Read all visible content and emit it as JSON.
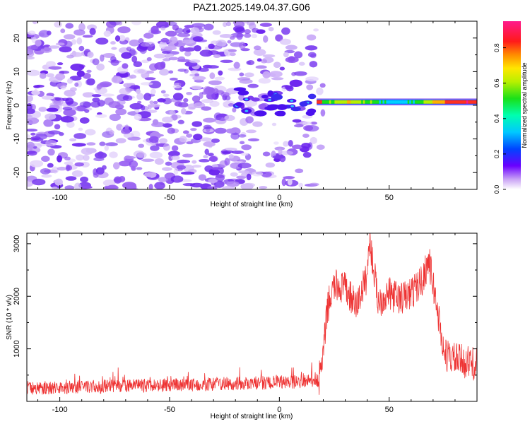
{
  "title": "PAZ1.2025.149.04.37.G06",
  "colors": {
    "snr_line": "#ee3333",
    "noise": "#7a3cf0",
    "noise_light": "#c9a9f7"
  },
  "chart_data": [
    {
      "type": "heatmap",
      "xlabel": "Height of straight line (km)",
      "ylabel": "Frequency (Hz)",
      "xlim": [
        -115,
        90
      ],
      "ylim": [
        -25,
        25
      ],
      "x_ticks": [
        "-100",
        "-50",
        "0",
        "50"
      ],
      "x_tick_values": [
        -100,
        -50,
        0,
        50
      ],
      "y_ticks": [
        "20",
        "10",
        "0",
        "-10",
        "-20"
      ],
      "y_tick_values": [
        20,
        10,
        0,
        -10,
        -20
      ],
      "colorbar": {
        "label": "Normalized spectral amplitude",
        "range": [
          0,
          0.95
        ],
        "ticks": [
          "0.0",
          "0.2",
          "0.4",
          "0.6",
          "0.8"
        ],
        "tick_values": [
          0,
          0.2,
          0.4,
          0.6,
          0.8
        ]
      },
      "features": {
        "noise_region_x": [
          -115,
          17
        ],
        "signal_band": {
          "x_start": 17,
          "x_end": 90,
          "freq": 1,
          "amplitude_range": [
            0.3,
            0.9
          ]
        }
      }
    },
    {
      "type": "line",
      "xlabel": "Height of straight line (km)",
      "ylabel": "SNR (10 * v/v)",
      "xlim": [
        -115,
        90
      ],
      "ylim": [
        0,
        3200
      ],
      "x_ticks": [
        "-100",
        "-50",
        "0",
        "50"
      ],
      "x_tick_values": [
        -100,
        -50,
        0,
        50
      ],
      "y_ticks": [
        "3000",
        "2000",
        "1000"
      ],
      "y_tick_values": [
        3000,
        2000,
        1000
      ],
      "series": [
        {
          "x": [
            -115,
            -100,
            -80,
            -60,
            -40,
            -20,
            0,
            10,
            18,
            20,
            22,
            25,
            30,
            35,
            40,
            41,
            45,
            50,
            55,
            60,
            65,
            68,
            72,
            75,
            80,
            85,
            90
          ],
          "y": [
            250,
            270,
            280,
            300,
            320,
            340,
            360,
            380,
            400,
            900,
            1800,
            2200,
            2150,
            1800,
            2400,
            3100,
            1900,
            2050,
            1950,
            2050,
            2300,
            2700,
            1750,
            900,
            800,
            750,
            700
          ]
        }
      ]
    }
  ]
}
